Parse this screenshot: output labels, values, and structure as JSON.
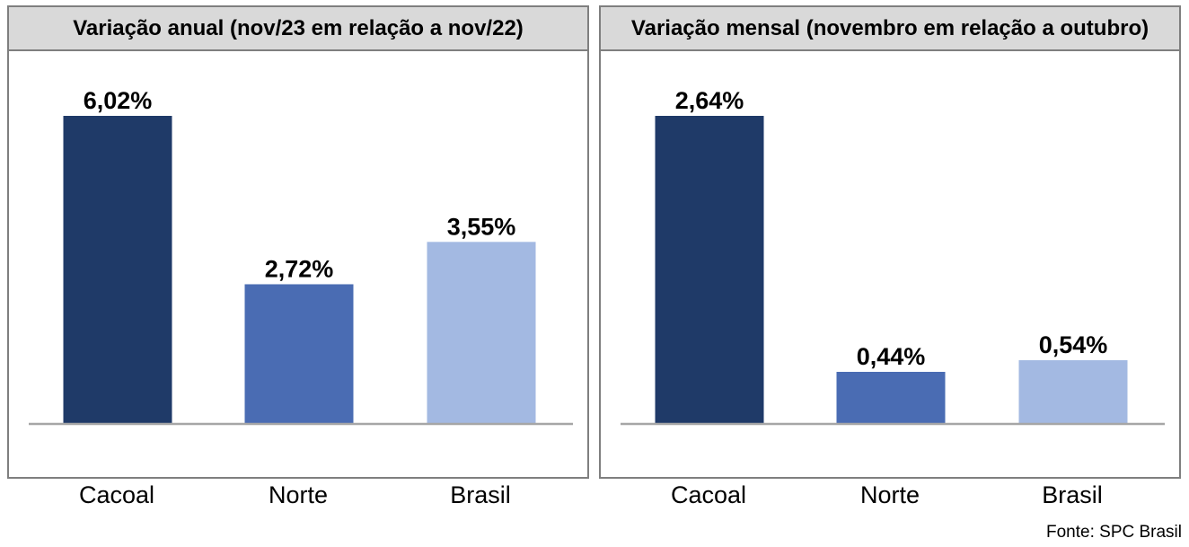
{
  "chart_data": [
    {
      "type": "bar",
      "title": "Variação anual (nov/23 em relação a nov/22)",
      "categories": [
        "Cacoal",
        "Norte",
        "Brasil"
      ],
      "values": [
        6.02,
        2.72,
        3.55
      ],
      "value_labels": [
        "6,02%",
        "2,72%",
        "3,55%"
      ],
      "bar_colors": [
        "#1f3a68",
        "#4a6cb3",
        "#a3b9e2"
      ],
      "ylim": [
        0,
        6.02
      ],
      "grid": false,
      "legend": "none"
    },
    {
      "type": "bar",
      "title": "Variação mensal (novembro em relação a outubro)",
      "categories": [
        "Cacoal",
        "Norte",
        "Brasil"
      ],
      "values": [
        2.64,
        0.44,
        0.54
      ],
      "value_labels": [
        "2,64%",
        "0,44%",
        "0,54%"
      ],
      "bar_colors": [
        "#1f3a68",
        "#4a6cb3",
        "#a3b9e2"
      ],
      "ylim": [
        0,
        2.64
      ],
      "grid": false,
      "legend": "none"
    }
  ],
  "source": "Fonte: SPC Brasil"
}
